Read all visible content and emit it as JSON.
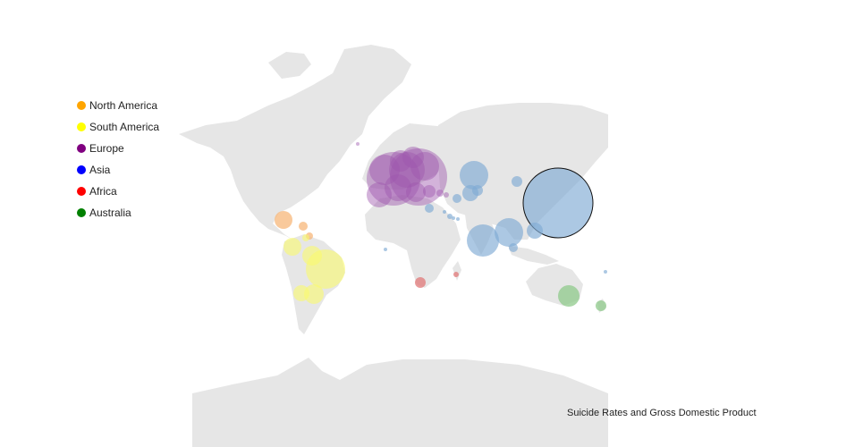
{
  "title": "Suicide Rates and Gross Domestic Product",
  "legend": [
    {
      "label": "North America",
      "color": "#FFA500"
    },
    {
      "label": "South America",
      "color": "#FFFF00"
    },
    {
      "label": "Europe",
      "color": "#800080"
    },
    {
      "label": "Asia",
      "color": "#0000FF"
    },
    {
      "label": "Africa",
      "color": "#FF0000"
    },
    {
      "label": "Australia",
      "color": "#008000"
    }
  ],
  "chart_data": {
    "type": "scatter",
    "series": [
      {
        "name": "North America"
      },
      {
        "name": "South America"
      },
      {
        "name": "Europe"
      },
      {
        "name": "Asia"
      },
      {
        "name": "Africa"
      },
      {
        "name": "Australia"
      }
    ],
    "title": "Suicide Rates and Gross Domestic Product"
  },
  "series_fill": {
    "North America": "#F7B77A",
    "South America": "#FAFA6E",
    "Europe": "#9E57AE",
    "Asia": "#7FAAD4",
    "Africa": "#E07878",
    "Australia": "#8FC98B"
  },
  "land_color": "#E6E6E6"
}
